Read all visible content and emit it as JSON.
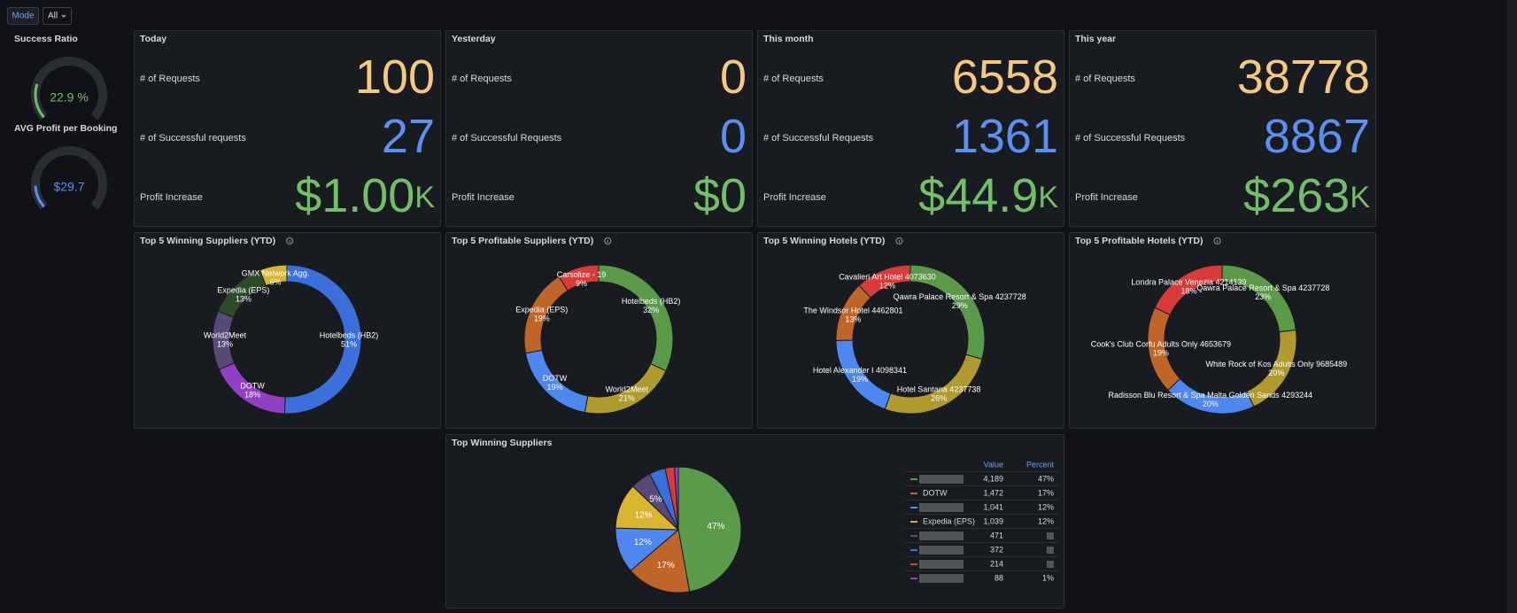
{
  "toolbar": {
    "mode_label": "Mode",
    "mode_value": "All"
  },
  "stats": [
    {
      "title": "Today",
      "rows": [
        {
          "label": "# of Requests",
          "value": 100,
          "color": "#f5c882"
        },
        {
          "label": "# of Successful requests",
          "value": 27,
          "color": "#5b8ff0"
        },
        {
          "label": "Profit Increase",
          "value": "$1.00",
          "suffix": "K",
          "color": "#73bf69"
        }
      ]
    },
    {
      "title": "Yesterday",
      "rows": [
        {
          "label": "# of Requests",
          "value": 0,
          "color": "#f5c882"
        },
        {
          "label": "# of Successful Requests",
          "value": 0,
          "color": "#5b8ff0"
        },
        {
          "label": "Profit Increase",
          "value": "$0",
          "color": "#73bf69"
        }
      ]
    },
    {
      "title": "This month",
      "rows": [
        {
          "label": "# of Requests",
          "value": 6558,
          "color": "#f5c882"
        },
        {
          "label": "# of Successful Requests",
          "value": 1361,
          "color": "#5b8ff0"
        },
        {
          "label": "Profit Increase",
          "value": "$44.9",
          "suffix": "K",
          "color": "#73bf69"
        }
      ]
    },
    {
      "title": "This year",
      "rows": [
        {
          "label": "# of Requests",
          "value": 38778,
          "color": "#f5c882"
        },
        {
          "label": "# of Successful Requests",
          "value": 8867,
          "color": "#5b8ff0"
        },
        {
          "label": "Profit Increase",
          "value": "$263",
          "suffix": "K",
          "color": "#73bf69"
        }
      ]
    }
  ],
  "chart_data": [
    {
      "type": "gauge",
      "title": "Success Ratio",
      "value": 22.9,
      "value_label": "22.9 %",
      "ylim": [
        0,
        100
      ],
      "color": "#73bf69"
    },
    {
      "type": "gauge",
      "title": "AVG Profit per Booking",
      "value": 29.7,
      "value_label": "$29.7",
      "ylim": [
        0,
        200
      ],
      "color": "#5b8ff0"
    },
    {
      "type": "donut",
      "title": "Top 5 Winning Suppliers (YTD)",
      "categories": [
        "Hotelbeds (HB2)",
        "DOTW",
        "World2Meet",
        "Expedia (EPS)",
        "GMX Network Agg."
      ],
      "values": [
        51,
        18,
        13,
        13,
        6
      ],
      "value_labels": [
        "51%",
        "18%",
        "13%",
        "13%",
        "6%"
      ],
      "colors": [
        "#3a6fdc",
        "#9140c4",
        "#574a78",
        "#2d4a2a",
        "#d9b530"
      ]
    },
    {
      "type": "donut",
      "title": "Top 5 Profitable Suppliers (YTD)",
      "categories": [
        "Hotelbeds (HB2)",
        "World2Meet",
        "DOTW",
        "Expedia (EPS)",
        "Carsolize - 19"
      ],
      "values": [
        32,
        21,
        19,
        19,
        9
      ],
      "value_labels": [
        "32%",
        "21%",
        "19%",
        "19%",
        "9%"
      ],
      "colors": [
        "#5a9a48",
        "#b09a2e",
        "#4f87f0",
        "#c0652a",
        "#d93a3a"
      ]
    },
    {
      "type": "donut",
      "title": "Top 5 Winning Hotels (YTD)",
      "categories": [
        "Qawra Palace Resort & Spa 4237728",
        "Hotel Santana 4237738",
        "Hotel Alexander I 4098341",
        "The Windsor Hotel 4462801",
        "Cavalieri Art Hotel 4073630"
      ],
      "values": [
        29,
        26,
        19,
        13,
        12
      ],
      "value_labels": [
        "29%",
        "26%",
        "19%",
        "13%",
        "12%"
      ],
      "colors": [
        "#5a9a48",
        "#b09a2e",
        "#4f87f0",
        "#c0652a",
        "#d93a3a"
      ]
    },
    {
      "type": "donut",
      "title": "Top 5 Profitable Hotels (YTD)",
      "categories": [
        "Qawra Palace Resort & Spa 4237728",
        "White Rock of Kos Adults Only 9685489",
        "Radisson Blu Resort & Spa Malta Golden Sands 4293244",
        "Cook's Club Corfu Adults Only 4653679",
        "Londra Palace Venezia 4214139"
      ],
      "values": [
        23,
        20,
        20,
        19,
        18
      ],
      "value_labels": [
        "23%",
        "20%",
        "20%",
        "19%",
        "18%"
      ],
      "colors": [
        "#5a9a48",
        "#b09a2e",
        "#4f87f0",
        "#c0652a",
        "#d93a3a"
      ]
    },
    {
      "type": "pie",
      "title": "Top Winning Suppliers",
      "categories": [
        null,
        "DOTW",
        null,
        "Expedia (EPS)",
        null,
        null,
        null,
        null
      ],
      "values": [
        4189,
        1472,
        1041,
        1039,
        471,
        372,
        214,
        88
      ],
      "value_labels": [
        "47%",
        "17%",
        "12%",
        "12%",
        "5%",
        null,
        null,
        null
      ],
      "table_values": [
        "4,189",
        "1,472",
        "1,041",
        "1,039",
        "471",
        "372",
        "214",
        "88"
      ],
      "percent_labels": [
        "47%",
        "17%",
        "12%",
        "12%",
        null,
        null,
        null,
        "1%"
      ],
      "columns": [
        "Value",
        "Percent"
      ],
      "colors": [
        "#5a9a48",
        "#c0652a",
        "#4f87f0",
        "#d9b530",
        "#574a78",
        "#3a6fdc",
        "#d93a3a",
        "#9140c4"
      ]
    }
  ]
}
